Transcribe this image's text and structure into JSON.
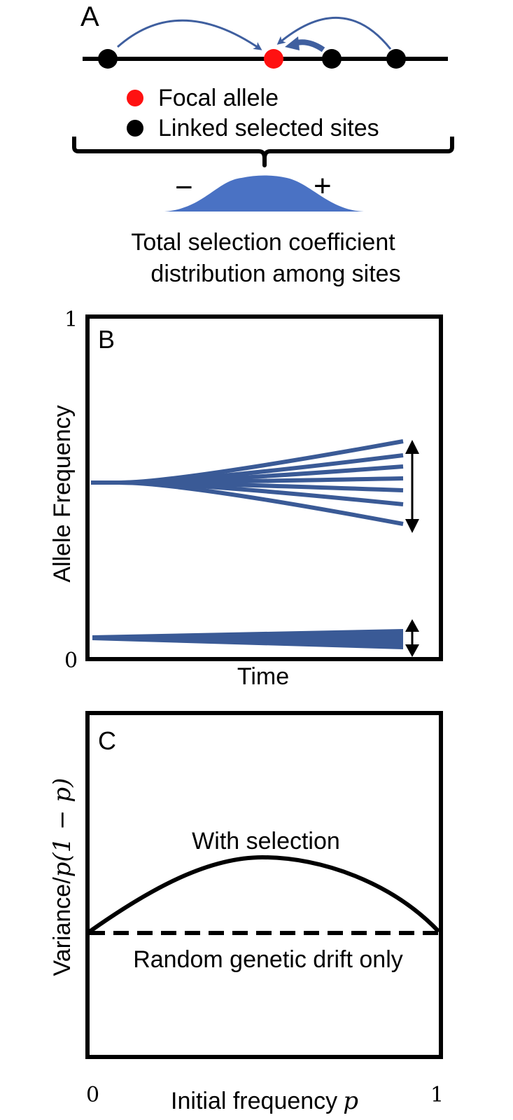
{
  "panel_a": {
    "label": "A",
    "legend": {
      "focal": "Focal allele",
      "linked": "Linked selected sites"
    },
    "dist_minus": "−",
    "dist_plus": "+",
    "caption_line1": "Total selection coefficient",
    "caption_line2": "distribution among sites",
    "colors": {
      "focal": "#ff1111",
      "linked": "#000000",
      "arrow": "#3f5f9f",
      "distribution": "#4a72c4"
    }
  },
  "panel_b": {
    "label": "B",
    "y_top": "1",
    "y_bottom": "0",
    "y_axis": "Allele Frequency",
    "x_axis": "Time",
    "color": "#3a5a96"
  },
  "panel_c": {
    "label": "C",
    "y_axis_prefix": "Variance/",
    "y_axis_math": "p(1 − p)",
    "x_axis_prefix": "Initial frequency",
    "x_axis_math": "p",
    "x_left": "0",
    "x_right": "1",
    "curve_with": "With selection",
    "curve_drift": "Random genetic drift only"
  }
}
